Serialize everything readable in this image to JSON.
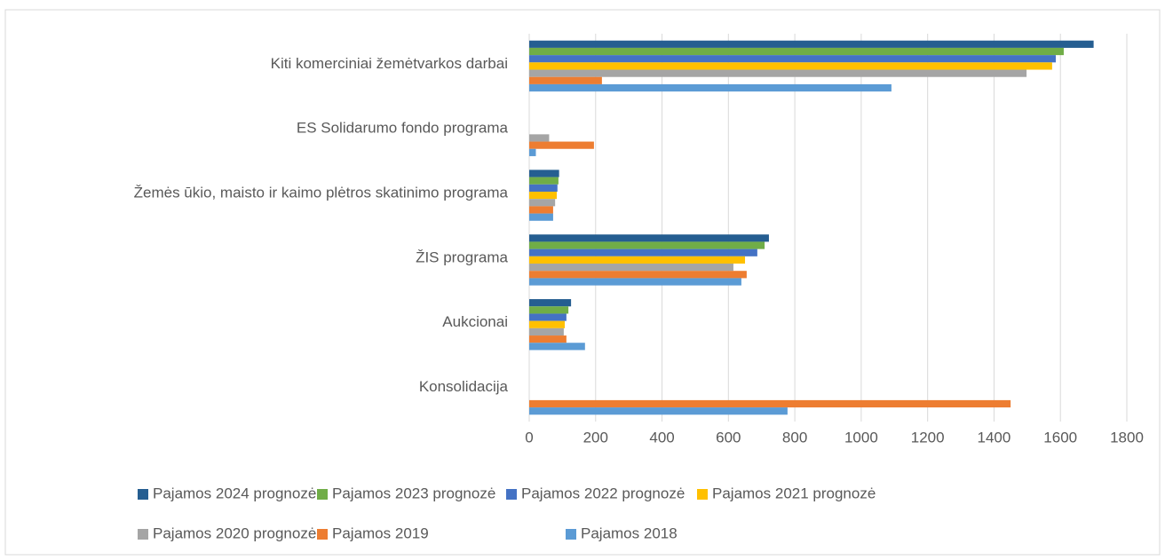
{
  "chart_data": {
    "type": "hbar",
    "categories": [
      "Kiti komerciniai žemėtvarkos darbai",
      "ES Solidarumo fondo programa",
      "Žemės ūkio, maisto ir kaimo plėtros skatinimo programa",
      "ŽIS programa",
      "Aukcionai",
      "Konsolidacija"
    ],
    "series": [
      {
        "name": "Pajamos 2024 prognozė",
        "color": "#255e91",
        "values": [
          1700,
          null,
          90,
          722,
          126,
          null
        ]
      },
      {
        "name": "Pajamos 2023 prognozė",
        "color": "#70ad47",
        "values": [
          1610,
          null,
          88,
          709,
          118,
          null
        ]
      },
      {
        "name": "Pajamos 2022 prognozė",
        "color": "#4472c4",
        "values": [
          1586,
          null,
          85,
          687,
          112,
          null
        ]
      },
      {
        "name": "Pajamos 2021 prognozė",
        "color": "#ffc000",
        "values": [
          1575,
          null,
          83,
          650,
          107,
          null
        ]
      },
      {
        "name": "Pajamos 2020 prognozė",
        "color": "#a5a5a5",
        "values": [
          1498,
          60,
          78,
          615,
          104,
          null
        ]
      },
      {
        "name": "Pajamos 2019",
        "color": "#ed7d31",
        "values": [
          219,
          195,
          72,
          655,
          112,
          1450
        ]
      },
      {
        "name": "Pajamos 2018",
        "color": "#5b9bd5",
        "values": [
          1091,
          20,
          72,
          639,
          168,
          778
        ]
      }
    ],
    "xlim": [
      0,
      1800
    ],
    "xticks": [
      0,
      200,
      400,
      600,
      800,
      1000,
      1200,
      1400,
      1600,
      1800
    ],
    "grid": true
  }
}
